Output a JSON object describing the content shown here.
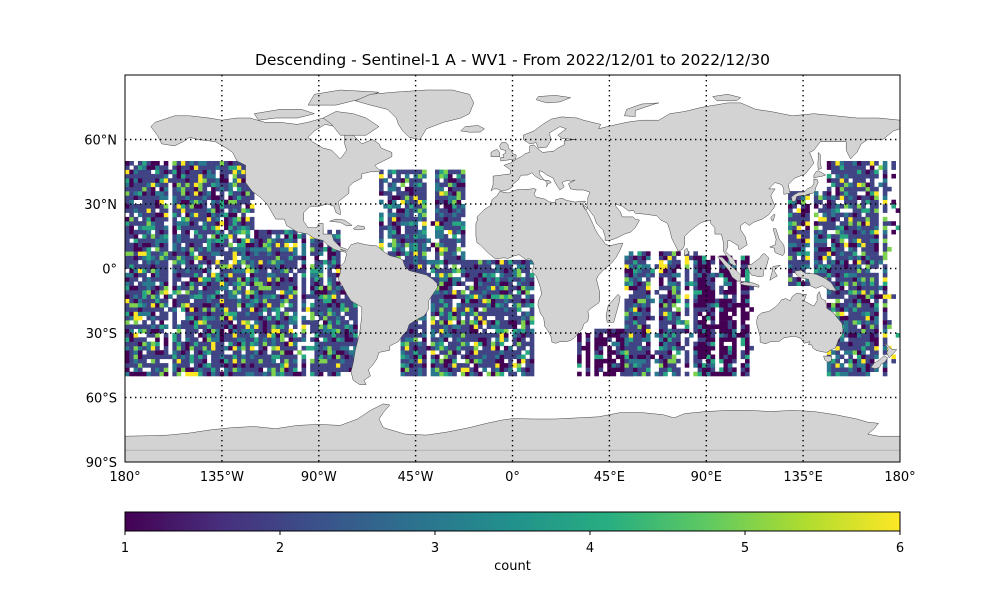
{
  "chart_data": {
    "type": "heatmap",
    "title": "Descending - Sentinel-1 A - WV1 - From 2022/12/01 to 2022/12/30",
    "projection": "plate-carree",
    "xlim": [
      -180,
      180
    ],
    "ylim": [
      -90,
      90
    ],
    "xticks": [
      {
        "value": -180,
        "label": "180°"
      },
      {
        "value": -135,
        "label": "135°W"
      },
      {
        "value": -90,
        "label": "90°W"
      },
      {
        "value": -45,
        "label": "45°W"
      },
      {
        "value": 0,
        "label": "0°"
      },
      {
        "value": 45,
        "label": "45°E"
      },
      {
        "value": 90,
        "label": "90°E"
      },
      {
        "value": 135,
        "label": "135°E"
      },
      {
        "value": 180,
        "label": "180°"
      }
    ],
    "yticks": [
      {
        "value": 60,
        "label": "60°N"
      },
      {
        "value": 30,
        "label": "30°N"
      },
      {
        "value": 0,
        "label": "0°"
      },
      {
        "value": -30,
        "label": "30°S"
      },
      {
        "value": -60,
        "label": "60°S"
      },
      {
        "value": -90,
        "label": "90°S"
      }
    ],
    "gridlines": "dotted",
    "grid": true,
    "land_color": "#d3d3d3",
    "cell_size_deg": 2,
    "data_extent": {
      "lat_min": -50,
      "lat_max": 50
    },
    "colorbar": {
      "label": "count",
      "colormap": "viridis",
      "vmin": 1,
      "vmax": 6,
      "ticks": [
        1,
        2,
        3,
        4,
        5,
        6
      ],
      "orientation": "horizontal",
      "placement": "bottom"
    },
    "swath_regions": [
      {
        "name": "north-pacific",
        "lon": [
          -180,
          -120
        ],
        "lat": [
          -50,
          50
        ],
        "dominant_count": 2
      },
      {
        "name": "east-pacific",
        "lon": [
          -120,
          -80
        ],
        "lat": [
          -50,
          18
        ],
        "dominant_count": 2
      },
      {
        "name": "south-east-pacific",
        "lon": [
          -88,
          -72
        ],
        "lat": [
          -48,
          -8
        ],
        "dominant_count": 2
      },
      {
        "name": "north-atlantic",
        "lon": [
          -62,
          -22
        ],
        "lat": [
          2,
          46
        ],
        "dominant_count": 2
      },
      {
        "name": "south-atlantic",
        "lon": [
          -52,
          10
        ],
        "lat": [
          -50,
          4
        ],
        "dominant_count": 2
      },
      {
        "name": "south-west-indian",
        "lon": [
          30,
          56
        ],
        "lat": [
          -50,
          -28
        ],
        "dominant_count": 1
      },
      {
        "name": "central-indian",
        "lon": [
          52,
          86
        ],
        "lat": [
          -50,
          8
        ],
        "dominant_count": 2
      },
      {
        "name": "east-indian",
        "lon": [
          86,
          112
        ],
        "lat": [
          -50,
          6
        ],
        "dominant_count": 1
      },
      {
        "name": "west-pacific-asia",
        "lon": [
          128,
          148
        ],
        "lat": [
          -8,
          36
        ],
        "dominant_count": 2
      },
      {
        "name": "west-pacific",
        "lon": [
          146,
          180
        ],
        "lat": [
          -50,
          50
        ],
        "dominant_count": 2
      }
    ]
  }
}
